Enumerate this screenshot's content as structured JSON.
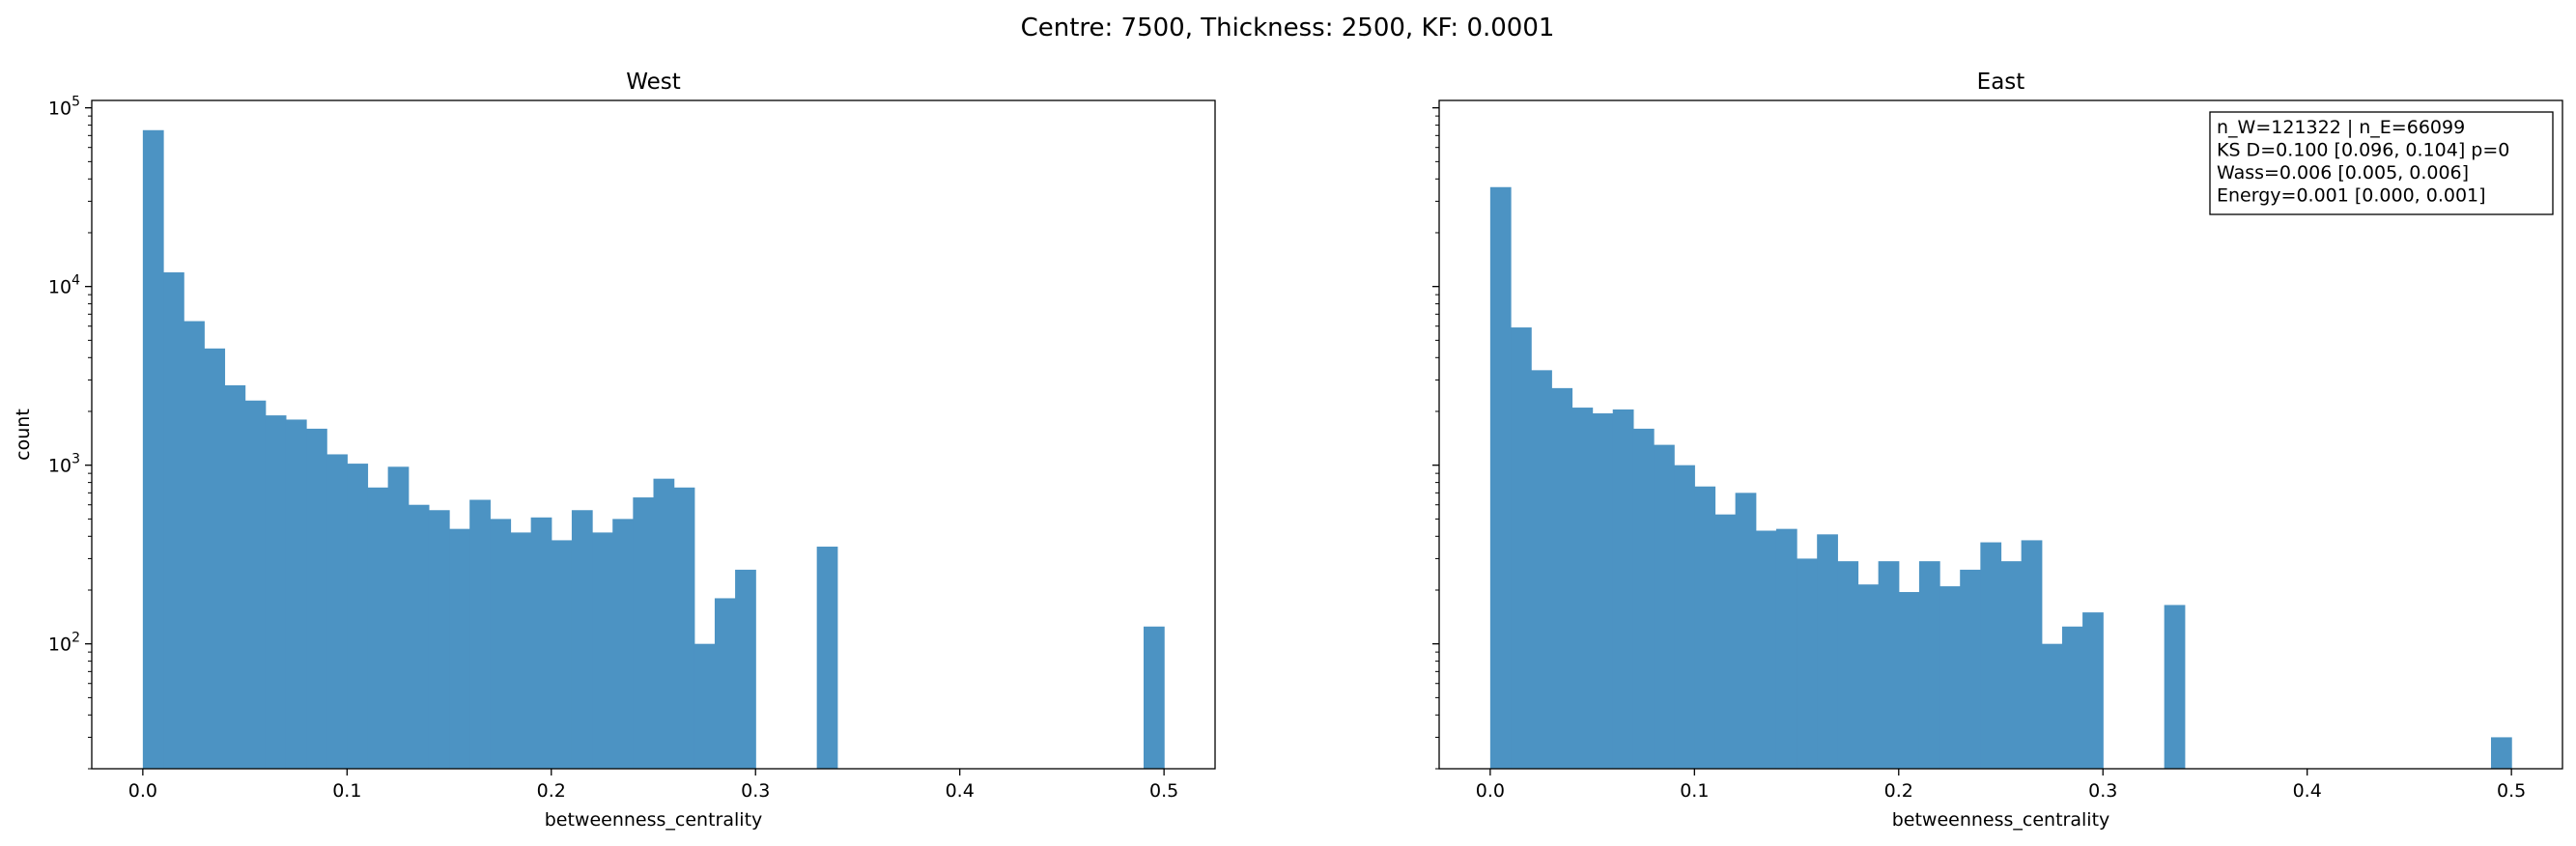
{
  "suptitle": "Centre: 7500, Thickness: 2500, KF: 0.0001",
  "colors": {
    "bar": "#4c93c3",
    "axis": "#000000"
  },
  "chart_data": [
    {
      "type": "bar",
      "title": "West",
      "xlabel": "betweenness_centrality",
      "ylabel": "count",
      "yscale": "log",
      "xlim": [
        -0.025,
        0.525
      ],
      "ylim": [
        20,
        110000
      ],
      "xticks": [
        "0.0",
        "0.1",
        "0.2",
        "0.3",
        "0.4",
        "0.5"
      ],
      "yticks": [
        "10^2",
        "10^3",
        "10^4",
        "10^5"
      ],
      "bin_width": 0.01,
      "bin_starts": [
        0.0,
        0.01,
        0.02,
        0.03,
        0.04,
        0.05,
        0.06,
        0.07,
        0.08,
        0.09,
        0.1,
        0.11,
        0.12,
        0.13,
        0.14,
        0.15,
        0.16,
        0.17,
        0.18,
        0.19,
        0.2,
        0.21,
        0.22,
        0.23,
        0.24,
        0.25,
        0.26,
        0.27,
        0.28,
        0.29,
        0.3,
        0.31,
        0.32,
        0.33,
        0.34,
        0.35,
        0.36,
        0.37,
        0.38,
        0.39,
        0.4,
        0.41,
        0.42,
        0.43,
        0.44,
        0.45,
        0.46,
        0.47,
        0.48,
        0.49
      ],
      "counts": [
        75000,
        12000,
        6400,
        4500,
        2800,
        2300,
        1900,
        1800,
        1600,
        1150,
        1020,
        750,
        980,
        600,
        560,
        440,
        640,
        500,
        420,
        510,
        380,
        560,
        420,
        500,
        660,
        840,
        750,
        100,
        180,
        260,
        0,
        0,
        0,
        350,
        0,
        0,
        0,
        0,
        0,
        0,
        0,
        0,
        0,
        0,
        0,
        0,
        0,
        0,
        0,
        125
      ],
      "grid": false
    },
    {
      "type": "bar",
      "title": "East",
      "xlabel": "betweenness_centrality",
      "ylabel": "",
      "yscale": "log",
      "xlim": [
        -0.025,
        0.525
      ],
      "ylim": [
        20,
        110000
      ],
      "xticks": [
        "0.0",
        "0.1",
        "0.2",
        "0.3",
        "0.4",
        "0.5"
      ],
      "bin_width": 0.01,
      "bin_starts": [
        0.0,
        0.01,
        0.02,
        0.03,
        0.04,
        0.05,
        0.06,
        0.07,
        0.08,
        0.09,
        0.1,
        0.11,
        0.12,
        0.13,
        0.14,
        0.15,
        0.16,
        0.17,
        0.18,
        0.19,
        0.2,
        0.21,
        0.22,
        0.23,
        0.24,
        0.25,
        0.26,
        0.27,
        0.28,
        0.29,
        0.3,
        0.31,
        0.32,
        0.33,
        0.34,
        0.35,
        0.36,
        0.37,
        0.38,
        0.39,
        0.4,
        0.41,
        0.42,
        0.43,
        0.44,
        0.45,
        0.46,
        0.47,
        0.48,
        0.49
      ],
      "counts": [
        36000,
        5900,
        3400,
        2700,
        2100,
        1950,
        2050,
        1600,
        1300,
        1000,
        760,
        530,
        700,
        430,
        440,
        300,
        410,
        290,
        215,
        290,
        195,
        290,
        210,
        260,
        370,
        290,
        380,
        100,
        125,
        150,
        0,
        0,
        0,
        165,
        0,
        0,
        0,
        0,
        0,
        0,
        0,
        0,
        0,
        0,
        0,
        0,
        0,
        0,
        0,
        30
      ],
      "grid": false,
      "stats_box": [
        "n_W=121322 | n_E=66099",
        "KS D=0.100 [0.096, 0.104]  p=0",
        "Wass=0.006 [0.005, 0.006]",
        "Energy=0.001 [0.000, 0.001]"
      ]
    }
  ]
}
